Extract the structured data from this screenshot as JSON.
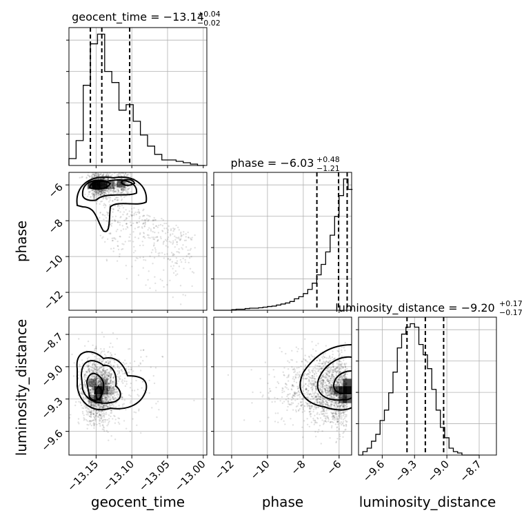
{
  "chart_data": {
    "type": "corner",
    "parameters": [
      "geocent_time",
      "phase",
      "luminosity_distance"
    ],
    "axis_labels": {
      "geocent_time": "geocent_time",
      "phase": "phase",
      "luminosity_distance": "luminosity_distance"
    },
    "ranges": {
      "geocent_time": [
        -13.188,
        -12.995
      ],
      "phase": [
        -13.0,
        -5.3
      ],
      "luminosity_distance": [
        -9.82,
        -8.54
      ]
    },
    "ticks": {
      "geocent_time": [
        -13.15,
        -13.1,
        -13.05,
        -13.0
      ],
      "phase": [
        -12,
        -10,
        -8,
        -6
      ],
      "luminosity_distance": [
        -9.6,
        -9.3,
        -9.0,
        -8.7
      ]
    },
    "tick_labels": {
      "geocent_time": [
        "−13.15",
        "−13.10",
        "−13.05",
        "−13.00"
      ],
      "phase": [
        "−12",
        "−10",
        "−8",
        "−6"
      ],
      "luminosity_distance": [
        "−9.6",
        "−9.3",
        "−9.0",
        "−8.7"
      ]
    },
    "titles": {
      "geocent_time": {
        "main": "geocent_time = −13.14",
        "plus": "+0.04",
        "minus": "−0.02"
      },
      "phase": {
        "main": "phase = −6.03",
        "plus": "+0.48",
        "minus": "−1.21"
      },
      "luminosity_distance": {
        "main": "luminosity_distance = −9.20",
        "plus": "+0.17",
        "minus": "−0.17"
      }
    },
    "quantiles": {
      "geocent_time": [
        -13.158,
        -13.142,
        -13.103
      ],
      "phase": [
        -7.24,
        -6.03,
        -5.55
      ],
      "luminosity_distance": [
        -9.37,
        -9.2,
        -9.03
      ]
    },
    "histograms": {
      "geocent_time": {
        "bins": [
          -13.188,
          -13.178,
          -13.168,
          -13.158,
          -13.148,
          -13.138,
          -13.128,
          -13.118,
          -13.108,
          -13.098,
          -13.088,
          -13.078,
          -13.068,
          -13.058,
          -13.048,
          -13.038,
          -13.028,
          -13.018,
          -13.008,
          -12.998
        ],
        "counts": [
          5,
          18,
          58,
          88,
          95,
          68,
          60,
          40,
          44,
          32,
          22,
          14,
          8,
          4,
          4,
          3,
          2,
          1,
          0
        ]
      },
      "phase": {
        "bins": [
          -13.0,
          -12.75,
          -12.5,
          -12.25,
          -12.0,
          -11.75,
          -11.5,
          -11.25,
          -11.0,
          -10.75,
          -10.5,
          -10.25,
          -10.0,
          -9.75,
          -9.5,
          -9.25,
          -9.0,
          -8.75,
          -8.5,
          -8.25,
          -8.0,
          -7.75,
          -7.5,
          -7.25,
          -7.0,
          -6.75,
          -6.5,
          -6.25,
          -6.0,
          -5.75,
          -5.5,
          -5.25
        ],
        "counts": [
          0,
          0,
          0,
          0,
          0.3,
          0.5,
          0.5,
          0.8,
          1,
          1,
          1.2,
          1.5,
          1.8,
          2,
          2.5,
          3,
          3.5,
          4.2,
          5.5,
          6.5,
          8,
          10,
          13,
          17,
          22,
          28,
          36,
          45,
          55,
          63,
          58
        ]
      },
      "luminosity_distance": {
        "bins": [
          -9.82,
          -9.78,
          -9.74,
          -9.7,
          -9.66,
          -9.62,
          -9.58,
          -9.54,
          -9.5,
          -9.46,
          -9.42,
          -9.38,
          -9.34,
          -9.3,
          -9.26,
          -9.22,
          -9.18,
          -9.14,
          -9.1,
          -9.06,
          -9.02,
          -8.98,
          -8.94,
          -8.9,
          -8.86,
          -8.82,
          -8.78,
          -8.74,
          -8.7
        ],
        "counts": [
          0,
          0.5,
          1,
          2,
          3,
          5,
          6.5,
          9,
          12,
          15.5,
          17.5,
          18.5,
          19,
          18.5,
          16,
          14.5,
          12.5,
          9.5,
          6.5,
          4,
          2.5,
          1,
          0.5,
          0.3,
          0,
          0,
          0,
          0
        ]
      }
    },
    "scatter_density": [
      {
        "x": "geocent_time",
        "y": "phase",
        "center_x": -13.145,
        "center_y": -6.0,
        "secondary_x": -13.115,
        "secondary_y": -5.9,
        "tail_end_x": -13.03,
        "tail_end_y": -8.5
      },
      {
        "x": "geocent_time",
        "y": "luminosity_distance",
        "center_x": -13.146,
        "center_y": -9.22
      },
      {
        "x": "phase",
        "y": "luminosity_distance",
        "center_x": -5.6,
        "center_y": -9.22
      }
    ],
    "grid": true
  }
}
